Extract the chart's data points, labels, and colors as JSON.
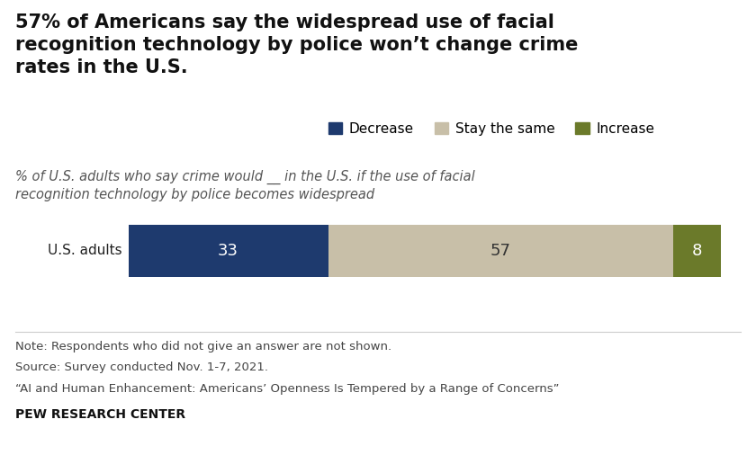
{
  "title": "57% of Americans say the widespread use of facial\nrecognition technology by police won’t change crime\nrates in the U.S.",
  "subtitle_line1": "% of U.S. adults who say crime would __ in the U.S. if the use of facial",
  "subtitle_line2": "recognition technology by police becomes widespread",
  "categories": [
    "U.S. adults"
  ],
  "values_decrease": [
    33
  ],
  "values_stay": [
    57
  ],
  "values_increase": [
    8
  ],
  "color_decrease": "#1e3a6e",
  "color_stay": "#c8bfa8",
  "color_increase": "#6b7a2a",
  "legend_labels": [
    "Decrease",
    "Stay the same",
    "Increase"
  ],
  "note_lines": [
    "Note: Respondents who did not give an answer are not shown.",
    "Source: Survey conducted Nov. 1-7, 2021.",
    "“AI and Human Enhancement: Americans’ Openness Is Tempered by a Range of Concerns”"
  ],
  "footer": "PEW RESEARCH CENTER",
  "background_color": "#ffffff",
  "title_fontsize": 15,
  "subtitle_fontsize": 10.5,
  "bar_label_fontsize": 13,
  "legend_fontsize": 11,
  "note_fontsize": 9.5,
  "footer_fontsize": 10
}
